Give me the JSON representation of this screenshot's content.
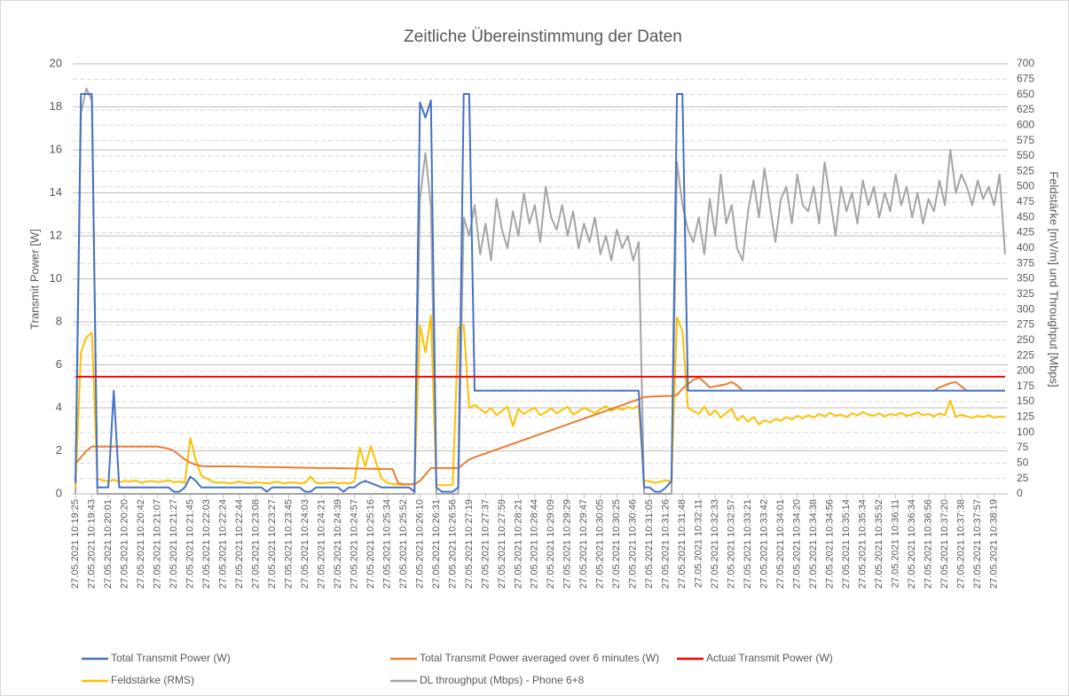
{
  "chart_data": {
    "type": "line",
    "title": "Zeitliche Übereinstimmung der Daten",
    "y_label": "Transmit Power [W]",
    "y2_label": "Feldstärke [mV/m] und Throughput [Mbps]",
    "ylim": [
      0,
      20
    ],
    "yticks": [
      0,
      2,
      4,
      6,
      8,
      10,
      12,
      14,
      16,
      18,
      20
    ],
    "y2lim": [
      0,
      700
    ],
    "y2ticks": [
      0,
      25,
      50,
      75,
      100,
      125,
      150,
      175,
      200,
      225,
      250,
      275,
      300,
      325,
      350,
      375,
      400,
      425,
      450,
      475,
      500,
      525,
      550,
      575,
      600,
      625,
      650,
      675,
      700
    ],
    "grid": true,
    "legend": "bottom",
    "categories": [
      "27.05.2021 10:19:25",
      null,
      null,
      "27.05.2021 10:19:43",
      null,
      null,
      "27.05.2021 10:20:01",
      null,
      null,
      "27.05.2021 10:20:20",
      null,
      null,
      "27.05.2021 10:20:42",
      null,
      null,
      "27.05.2021 10:21:07",
      null,
      null,
      "27.05.2021 10:21:27",
      null,
      null,
      "27.05.2021 10:21:45",
      null,
      null,
      "27.05.2021 10:22:03",
      null,
      null,
      "27.05.2021 10:22:24",
      null,
      null,
      "27.05.2021 10:22:44",
      null,
      null,
      "27.05.2021 10:23:08",
      null,
      null,
      "27.05.2021 10:23:27",
      null,
      null,
      "27.05.2021 10:23:45",
      null,
      null,
      "27.05.2021 10:24:03",
      null,
      null,
      "27.05.2021 10:24:21",
      null,
      null,
      "27.05.2021 10:24:39",
      null,
      null,
      "27.05.2021 10:24:57",
      null,
      null,
      "27.05.2021 10:25:16",
      null,
      null,
      "27.05.2021 10:25:34",
      null,
      null,
      "27.05.2021 10:25:52",
      null,
      null,
      "27.05.2021 10:26:10",
      null,
      null,
      "27.05.2021 10:26:31",
      null,
      null,
      "27.05.2021 10:26:56",
      null,
      null,
      "27.05.2021 10:27:19",
      null,
      null,
      "27.05.2021 10:27:37",
      null,
      null,
      "27.05.2021 10:27:59",
      null,
      null,
      "27.05.2021 10:28:21",
      null,
      null,
      "27.05.2021 10:28:44",
      null,
      null,
      "27.05.2021 10:29:09",
      null,
      null,
      "27.05.2021 10:29:29",
      null,
      null,
      "27.05.2021 10:29:47",
      null,
      null,
      "27.05.2021 10:30:05",
      null,
      null,
      "27.05.2021 10:30:25",
      null,
      null,
      "27.05.2021 10:30:46",
      null,
      null,
      "27.05.2021 10:31:05",
      null,
      null,
      "27.05.2021 10:31:26",
      null,
      null,
      "27.05.2021 10:31:48",
      null,
      null,
      "27.05.2021 10:32:11",
      null,
      null,
      "27.05.2021 10:32:33",
      null,
      null,
      "27.05.2021 10:32:57",
      null,
      null,
      "27.05.2021 10:33:21",
      null,
      null,
      "27.05.2021 10:33:42",
      null,
      null,
      "27.05.2021 10:34:01",
      null,
      null,
      "27.05.2021 10:34:20",
      null,
      null,
      "27.05.2021 10:34:38",
      null,
      null,
      "27.05.2021 10:34:56",
      null,
      null,
      "27.05.2021 10:35:14",
      null,
      null,
      "27.05.2021 10:35:34",
      null,
      null,
      "27.05.2021 10:35:52",
      null,
      null,
      "27.05.2021 10:36:11",
      null,
      null,
      "27.05.2021 10:36:34",
      null,
      null,
      "27.05.2021 10:36:56",
      null,
      null,
      "27.05.2021 10:37:20",
      null,
      null,
      "27.05.2021 10:37:38",
      null,
      null,
      "27.05.2021 10:37:57",
      null,
      null,
      "27.05.2021 10:38:19",
      null,
      null
    ],
    "series": [
      {
        "name": "DL throughput (Mbps) - Phone 6+8",
        "color": "#a5a5a5",
        "axis": "y2",
        "values": [
          0,
          620,
          660,
          640,
          0,
          0,
          0,
          0,
          0,
          0,
          0,
          0,
          0,
          0,
          0,
          0,
          0,
          0,
          0,
          0,
          0,
          0,
          0,
          0,
          0,
          0,
          0,
          0,
          0,
          0,
          0,
          0,
          0,
          0,
          0,
          0,
          0,
          0,
          0,
          0,
          0,
          0,
          0,
          0,
          0,
          0,
          0,
          0,
          0,
          0,
          0,
          0,
          0,
          0,
          0,
          0,
          0,
          0,
          0,
          0,
          0,
          0,
          0,
          480,
          555,
          470,
          0,
          0,
          0,
          0,
          0,
          450,
          420,
          470,
          390,
          440,
          380,
          480,
          430,
          400,
          460,
          420,
          490,
          440,
          470,
          410,
          500,
          450,
          430,
          470,
          420,
          460,
          400,
          440,
          410,
          450,
          390,
          420,
          380,
          430,
          400,
          420,
          380,
          410,
          0,
          0,
          0,
          0,
          0,
          0,
          540,
          470,
          430,
          410,
          450,
          390,
          480,
          420,
          520,
          440,
          470,
          400,
          380,
          460,
          510,
          450,
          530,
          470,
          410,
          480,
          500,
          440,
          520,
          470,
          460,
          500,
          440,
          540,
          480,
          420,
          500,
          460,
          490,
          440,
          510,
          470,
          500,
          450,
          490,
          460,
          520,
          470,
          500,
          450,
          490,
          440,
          480,
          460,
          510,
          470,
          560,
          490,
          520,
          500,
          470,
          510,
          480,
          500,
          470,
          520,
          390
        ]
      },
      {
        "name": "Feldstärke (RMS)",
        "color": "#ffc000",
        "axis": "y2",
        "values": [
          10,
          230,
          255,
          262,
          25,
          22,
          20,
          23,
          19,
          21,
          20,
          22,
          18,
          20,
          21,
          19,
          20,
          22,
          19,
          20,
          18,
          91,
          55,
          30,
          25,
          20,
          18,
          19,
          17,
          18,
          20,
          18,
          17,
          19,
          18,
          17,
          18,
          20,
          17,
          18,
          19,
          17,
          18,
          28,
          18,
          17,
          18,
          19,
          17,
          18,
          17,
          20,
          75,
          45,
          78,
          50,
          25,
          18,
          16,
          15,
          15,
          15,
          16,
          275,
          230,
          290,
          15,
          14,
          14,
          15,
          270,
          275,
          140,
          145,
          138,
          132,
          140,
          128,
          135,
          142,
          110,
          138,
          130,
          136,
          140,
          128,
          133,
          139,
          131,
          137,
          142,
          129,
          134,
          140,
          136,
          131,
          138,
          143,
          135,
          140,
          137,
          141,
          139,
          144,
          22,
          20,
          18,
          20,
          22,
          20,
          287,
          265,
          140,
          135,
          130,
          142,
          128,
          136,
          124,
          132,
          138,
          120,
          127,
          118,
          125,
          113,
          120,
          116,
          122,
          119,
          125,
          121,
          127,
          123,
          128,
          124,
          130,
          126,
          132,
          127,
          129,
          125,
          131,
          128,
          133,
          129,
          127,
          131,
          126,
          130,
          128,
          132,
          127,
          129,
          133,
          128,
          130,
          126,
          131,
          128,
          152,
          125,
          129,
          126,
          124,
          127,
          125,
          128,
          124,
          126,
          125
        ]
      },
      {
        "name": "Total Transmit Power averaged over 6 minutes (W)",
        "color": "#ed7d31",
        "values": [
          1.4,
          1.7,
          2.0,
          2.2,
          2.2,
          2.2,
          2.2,
          2.2,
          2.2,
          2.2,
          2.2,
          2.2,
          2.2,
          2.2,
          2.2,
          2.2,
          2.15,
          2.1,
          2.0,
          1.8,
          1.6,
          1.45,
          1.35,
          1.3,
          1.28,
          1.28,
          1.28,
          1.28,
          1.28,
          1.28,
          1.27,
          1.27,
          1.26,
          1.26,
          1.25,
          1.25,
          1.24,
          1.24,
          1.23,
          1.23,
          1.22,
          1.22,
          1.21,
          1.21,
          1.2,
          1.2,
          1.2,
          1.2,
          1.19,
          1.19,
          1.18,
          1.18,
          1.18,
          1.17,
          1.17,
          1.16,
          1.16,
          1.16,
          1.15,
          0.5,
          0.45,
          0.45,
          0.45,
          0.6,
          0.9,
          1.2,
          1.2,
          1.2,
          1.2,
          1.2,
          1.2,
          1.4,
          1.6,
          1.7,
          1.79,
          1.88,
          1.97,
          2.06,
          2.15,
          2.24,
          2.33,
          2.42,
          2.51,
          2.6,
          2.69,
          2.78,
          2.87,
          2.96,
          3.05,
          3.14,
          3.23,
          3.32,
          3.41,
          3.5,
          3.59,
          3.68,
          3.77,
          3.86,
          3.95,
          4.04,
          4.13,
          4.22,
          4.31,
          4.4,
          4.5,
          4.52,
          4.53,
          4.54,
          4.55,
          4.55,
          4.6,
          4.9,
          5.1,
          5.3,
          5.4,
          5.2,
          4.95,
          5.0,
          5.05,
          5.1,
          5.2,
          5.05,
          4.8,
          4.8,
          4.8,
          4.8,
          4.8,
          4.8,
          4.8,
          4.8,
          4.8,
          4.8,
          4.8,
          4.8,
          4.8,
          4.8,
          4.8,
          4.8,
          4.8,
          4.8,
          4.8,
          4.8,
          4.8,
          4.8,
          4.8,
          4.8,
          4.8,
          4.8,
          4.8,
          4.8,
          4.8,
          4.8,
          4.8,
          4.8,
          4.8,
          4.8,
          4.8,
          4.8,
          4.95,
          5.05,
          5.15,
          5.2,
          5.0,
          4.8,
          4.8,
          4.8,
          4.8,
          4.8,
          4.8,
          4.8,
          4.8
        ]
      },
      {
        "name": "Total Transmit Power (W)",
        "color": "#4472c4",
        "values": [
          0.5,
          18.6,
          18.6,
          18.6,
          0.3,
          0.3,
          0.3,
          4.8,
          0.3,
          0.3,
          0.3,
          0.3,
          0.3,
          0.3,
          0.3,
          0.3,
          0.3,
          0.3,
          0.1,
          0.1,
          0.3,
          0.8,
          0.6,
          0.3,
          0.3,
          0.3,
          0.3,
          0.3,
          0.3,
          0.3,
          0.3,
          0.3,
          0.3,
          0.3,
          0.3,
          0.1,
          0.3,
          0.3,
          0.3,
          0.3,
          0.3,
          0.3,
          0.1,
          0.1,
          0.3,
          0.3,
          0.3,
          0.3,
          0.3,
          0.1,
          0.3,
          0.3,
          0.5,
          0.6,
          0.5,
          0.4,
          0.3,
          0.3,
          0.3,
          0.3,
          0.3,
          0.3,
          0.1,
          18.2,
          17.5,
          18.3,
          0.3,
          0.1,
          0.1,
          0.1,
          0.3,
          18.6,
          18.6,
          4.8,
          4.8,
          4.8,
          4.8,
          4.8,
          4.8,
          4.8,
          4.8,
          4.8,
          4.8,
          4.8,
          4.8,
          4.8,
          4.8,
          4.8,
          4.8,
          4.8,
          4.8,
          4.8,
          4.8,
          4.8,
          4.8,
          4.8,
          4.8,
          4.8,
          4.8,
          4.8,
          4.8,
          4.8,
          4.8,
          4.8,
          0.3,
          0.3,
          0.1,
          0.1,
          0.3,
          0.6,
          18.6,
          18.6,
          4.8,
          4.8,
          4.8,
          4.8,
          4.8,
          4.8,
          4.8,
          4.8,
          4.8,
          4.8,
          4.8,
          4.8,
          4.8,
          4.8,
          4.8,
          4.8,
          4.8,
          4.8,
          4.8,
          4.8,
          4.8,
          4.8,
          4.8,
          4.8,
          4.8,
          4.8,
          4.8,
          4.8,
          4.8,
          4.8,
          4.8,
          4.8,
          4.8,
          4.8,
          4.8,
          4.8,
          4.8,
          4.8,
          4.8,
          4.8,
          4.8,
          4.8,
          4.8,
          4.8,
          4.8,
          4.8,
          4.8,
          4.8,
          4.8,
          4.8,
          4.8,
          4.8,
          4.8,
          4.8,
          4.8,
          4.8,
          4.8,
          4.8,
          4.8
        ]
      },
      {
        "name": "Actual Transmit Power (W)",
        "color": "#ff0000",
        "values": [
          5.45,
          5.45,
          5.45,
          5.45,
          5.45,
          5.45,
          5.45,
          5.45,
          5.45,
          5.45,
          5.45,
          5.45,
          5.45,
          5.45,
          5.45,
          5.45,
          5.45,
          5.45,
          5.45,
          5.45,
          5.45,
          5.45,
          5.45,
          5.45,
          5.45,
          5.45,
          5.45,
          5.45,
          5.45,
          5.45,
          5.45,
          5.45,
          5.45,
          5.45,
          5.45,
          5.45,
          5.45,
          5.45,
          5.45,
          5.45,
          5.45,
          5.45,
          5.45,
          5.45,
          5.45,
          5.45,
          5.45,
          5.45,
          5.45,
          5.45,
          5.45,
          5.45,
          5.45,
          5.45,
          5.45,
          5.45,
          5.45,
          5.45,
          5.45,
          5.45,
          5.45,
          5.45,
          5.45,
          5.45,
          5.45,
          5.45,
          5.45,
          5.45,
          5.45,
          5.45,
          5.45,
          5.45,
          5.45,
          5.45,
          5.45,
          5.45,
          5.45,
          5.45,
          5.45,
          5.45,
          5.45,
          5.45,
          5.45,
          5.45,
          5.45,
          5.45,
          5.45,
          5.45,
          5.45,
          5.45,
          5.45,
          5.45,
          5.45,
          5.45,
          5.45,
          5.45,
          5.45,
          5.45,
          5.45,
          5.45,
          5.45,
          5.45,
          5.45,
          5.45,
          5.45,
          5.45,
          5.45,
          5.45,
          5.45,
          5.45,
          5.45,
          5.45,
          5.45,
          5.45,
          5.45,
          5.45,
          5.45,
          5.45,
          5.45,
          5.45,
          5.45,
          5.45,
          5.45,
          5.45,
          5.45,
          5.45,
          5.45,
          5.45,
          5.45,
          5.45,
          5.45,
          5.45,
          5.45,
          5.45,
          5.45,
          5.45,
          5.45,
          5.45,
          5.45,
          5.45,
          5.45,
          5.45,
          5.45,
          5.45,
          5.45,
          5.45,
          5.45,
          5.45,
          5.45,
          5.45,
          5.45,
          5.45,
          5.45,
          5.45,
          5.45,
          5.45,
          5.45,
          5.45,
          5.45,
          5.45,
          5.45,
          5.45,
          5.45,
          5.45,
          5.45,
          5.45,
          5.45,
          5.45,
          5.45,
          5.45,
          5.45
        ]
      }
    ]
  }
}
